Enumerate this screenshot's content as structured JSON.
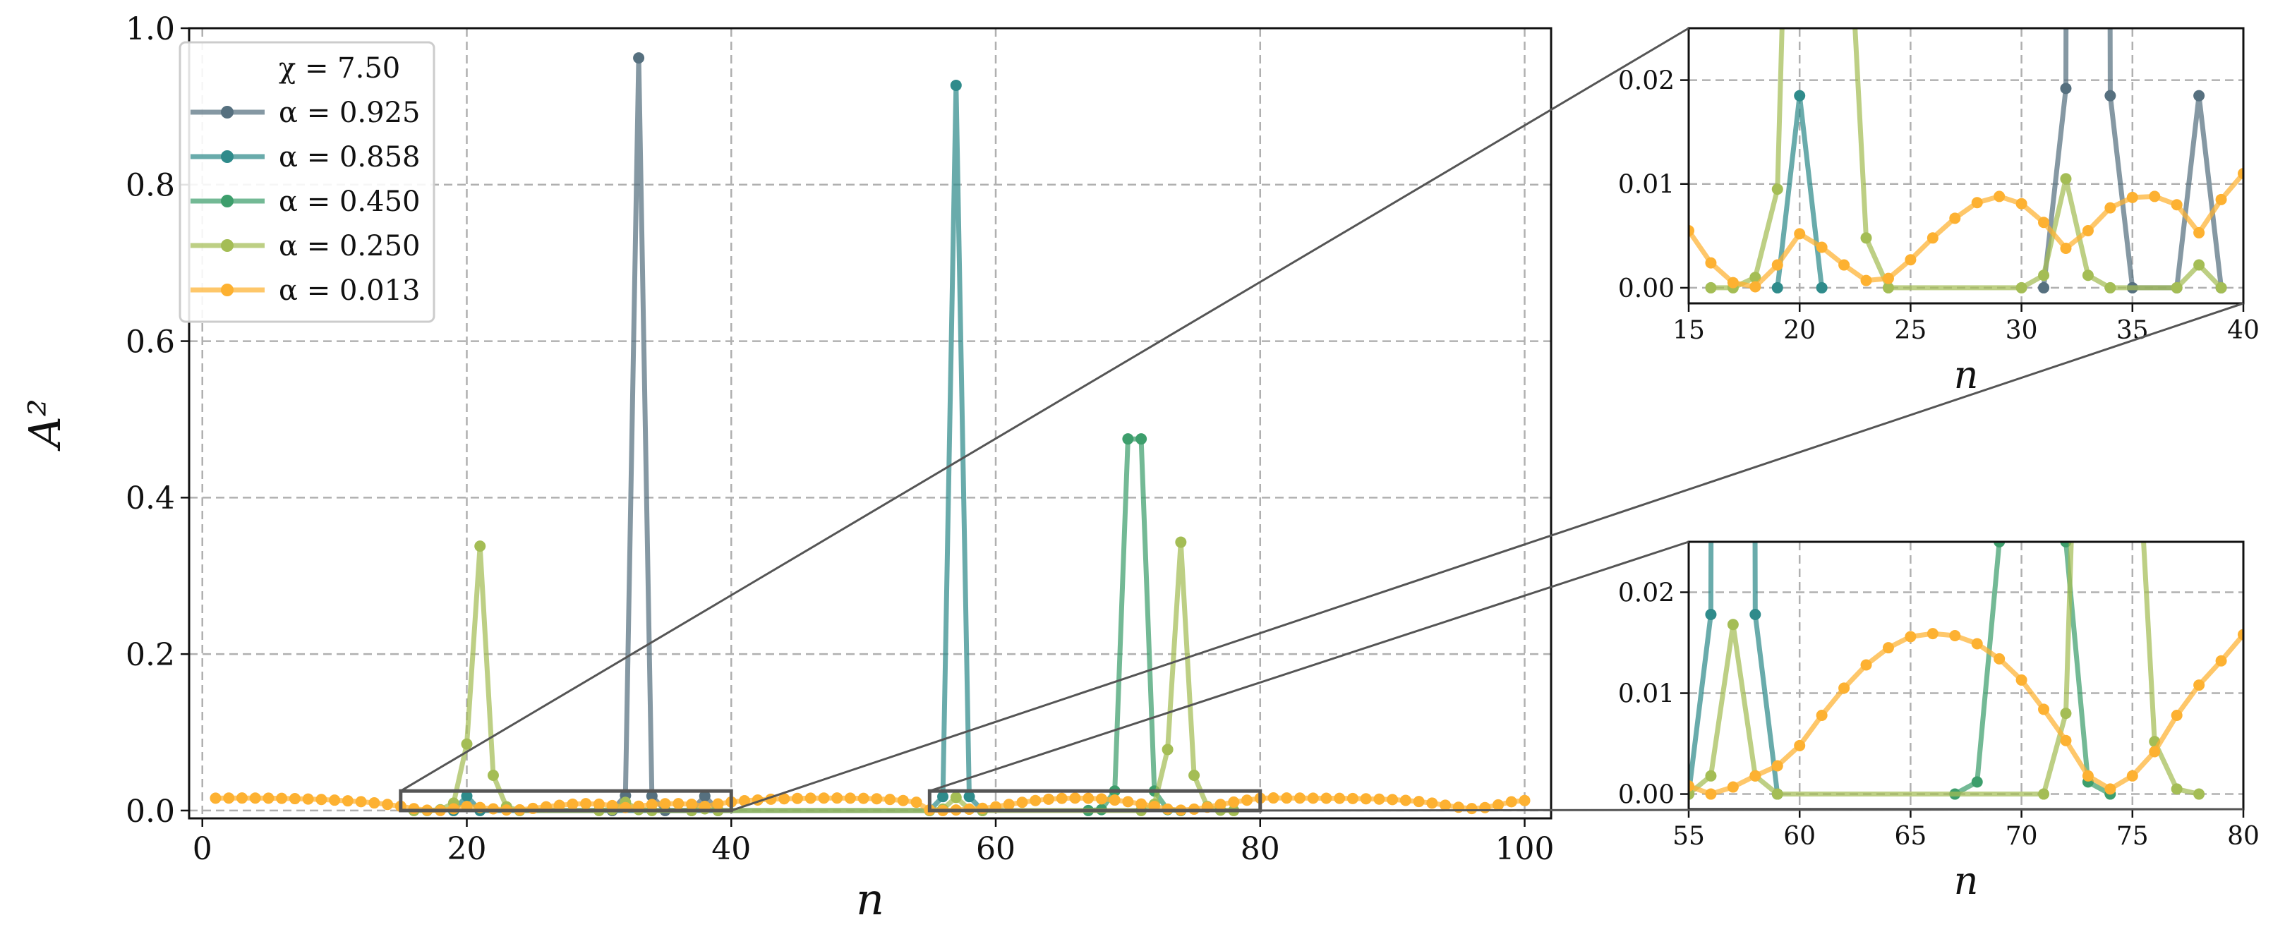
{
  "chart_data": [
    {
      "id": "main",
      "type": "line",
      "xlabel": "n",
      "ylabel": "A²",
      "xlim": [
        -1,
        102
      ],
      "ylim": [
        -0.01,
        1.0
      ],
      "xticks": [
        0,
        20,
        40,
        60,
        80,
        100
      ],
      "yticks": [
        0.0,
        0.2,
        0.4,
        0.6,
        0.8,
        1.0
      ],
      "xtick_labels": [
        "0",
        "20",
        "40",
        "60",
        "80",
        "100"
      ],
      "ytick_labels": [
        "0.0",
        "0.2",
        "0.4",
        "0.6",
        "0.8",
        "1.0"
      ],
      "grid": true,
      "legend_position": "upper-left",
      "legend_header": "χ = 7.50",
      "zoom_boxes": [
        {
          "x": [
            15,
            40
          ],
          "y": [
            0.0,
            0.025
          ],
          "target": "inset-top"
        },
        {
          "x": [
            55,
            80
          ],
          "y": [
            0.0,
            0.025
          ],
          "target": "inset-bottom"
        }
      ]
    },
    {
      "id": "inset-top",
      "type": "line",
      "xlabel": "n",
      "ylabel": "",
      "xlim": [
        15,
        40
      ],
      "ylim": [
        -0.0015,
        0.025
      ],
      "xticks": [
        15,
        20,
        25,
        30,
        35,
        40
      ],
      "yticks": [
        0.0,
        0.01,
        0.02
      ],
      "xtick_labels": [
        "15",
        "20",
        "25",
        "30",
        "35",
        "40"
      ],
      "ytick_labels": [
        "0.00",
        "0.01",
        "0.02"
      ],
      "grid": true
    },
    {
      "id": "inset-bottom",
      "type": "line",
      "xlabel": "n",
      "ylabel": "",
      "xlim": [
        55,
        80
      ],
      "ylim": [
        -0.0015,
        0.025
      ],
      "xticks": [
        55,
        60,
        65,
        70,
        75,
        80
      ],
      "yticks": [
        0.0,
        0.01,
        0.02
      ],
      "xtick_labels": [
        "55",
        "60",
        "65",
        "70",
        "75",
        "80"
      ],
      "ytick_labels": [
        "0.00",
        "0.01",
        "0.02"
      ],
      "grid": true
    }
  ],
  "series": [
    {
      "name": "α = 0.925",
      "color": "#56707f",
      "points": [
        [
          31,
          0.0
        ],
        [
          32,
          0.0192
        ],
        [
          33,
          0.962
        ],
        [
          34,
          0.0185
        ],
        [
          35,
          0.0
        ],
        [
          37,
          0.0
        ],
        [
          38,
          0.0185
        ],
        [
          39,
          0.0
        ]
      ]
    },
    {
      "name": "α = 0.858",
      "color": "#2f8b8b",
      "points": [
        [
          19,
          0.0
        ],
        [
          20,
          0.0185
        ],
        [
          21,
          0.0
        ],
        [
          55,
          0.0
        ],
        [
          56,
          0.0178
        ],
        [
          57,
          0.927
        ],
        [
          58,
          0.0178
        ],
        [
          59,
          0.0
        ]
      ]
    },
    {
      "name": "α = 0.450",
      "color": "#3d9e6c",
      "points": [
        [
          67,
          0.0
        ],
        [
          68,
          0.0012
        ],
        [
          69,
          0.025
        ],
        [
          70,
          0.475
        ],
        [
          71,
          0.475
        ],
        [
          72,
          0.025
        ],
        [
          73,
          0.0012
        ],
        [
          74,
          0.0
        ]
      ]
    },
    {
      "name": "α = 0.250",
      "color": "#a4bd55",
      "points": [
        [
          16,
          0.0
        ],
        [
          17,
          0.0
        ],
        [
          18,
          0.001
        ],
        [
          19,
          0.0095
        ],
        [
          20,
          0.085
        ],
        [
          21,
          0.338
        ],
        [
          22,
          0.045
        ],
        [
          23,
          0.0048
        ],
        [
          24,
          0.0
        ],
        [
          30,
          0.0
        ],
        [
          31,
          0.0012
        ],
        [
          32,
          0.0105
        ],
        [
          33,
          0.0012
        ],
        [
          34,
          0.0
        ],
        [
          37,
          0.0
        ],
        [
          38,
          0.0022
        ],
        [
          39,
          0.0
        ],
        [
          55,
          0.0
        ],
        [
          56,
          0.0018
        ],
        [
          57,
          0.0168
        ],
        [
          58,
          0.0018
        ],
        [
          59,
          0.0
        ],
        [
          71,
          0.0
        ],
        [
          72,
          0.008
        ],
        [
          73,
          0.078
        ],
        [
          74,
          0.343
        ],
        [
          75,
          0.045
        ],
        [
          76,
          0.0052
        ],
        [
          77,
          0.0005
        ],
        [
          78,
          0.0
        ]
      ]
    },
    {
      "name": "α = 0.013",
      "color": "#fdb131",
      "points": [
        [
          1,
          0.0158
        ],
        [
          2,
          0.0159
        ],
        [
          3,
          0.016
        ],
        [
          4,
          0.0159
        ],
        [
          5,
          0.0158
        ],
        [
          6,
          0.0156
        ],
        [
          7,
          0.0152
        ],
        [
          8,
          0.0147
        ],
        [
          9,
          0.0141
        ],
        [
          10,
          0.0133
        ],
        [
          11,
          0.0124
        ],
        [
          12,
          0.0113
        ],
        [
          13,
          0.0098
        ],
        [
          14,
          0.0078
        ],
        [
          15,
          0.0055
        ],
        [
          16,
          0.0024
        ],
        [
          17,
          0.0005
        ],
        [
          18,
          0.0001
        ],
        [
          19,
          0.0022
        ],
        [
          20,
          0.0052
        ],
        [
          21,
          0.0039
        ],
        [
          22,
          0.0022
        ],
        [
          23,
          0.0007
        ],
        [
          24,
          0.0009
        ],
        [
          25,
          0.0027
        ],
        [
          26,
          0.0048
        ],
        [
          27,
          0.0067
        ],
        [
          28,
          0.0082
        ],
        [
          29,
          0.0088
        ],
        [
          30,
          0.0081
        ],
        [
          31,
          0.0063
        ],
        [
          32,
          0.0038
        ],
        [
          33,
          0.0055
        ],
        [
          34,
          0.0077
        ],
        [
          35,
          0.0087
        ],
        [
          36,
          0.0088
        ],
        [
          37,
          0.008
        ],
        [
          38,
          0.0053
        ],
        [
          39,
          0.0085
        ],
        [
          40,
          0.011
        ],
        [
          41,
          0.0125
        ],
        [
          42,
          0.0135
        ],
        [
          43,
          0.0145
        ],
        [
          44,
          0.015
        ],
        [
          45,
          0.0155
        ],
        [
          46,
          0.0158
        ],
        [
          47,
          0.0159
        ],
        [
          48,
          0.016
        ],
        [
          49,
          0.0158
        ],
        [
          50,
          0.0156
        ],
        [
          51,
          0.015
        ],
        [
          52,
          0.0142
        ],
        [
          53,
          0.0128
        ],
        [
          54,
          0.0106
        ],
        [
          55,
          0.0008
        ],
        [
          56,
          0.0
        ],
        [
          57,
          0.0007
        ],
        [
          58,
          0.0018
        ],
        [
          59,
          0.0028
        ],
        [
          60,
          0.0048
        ],
        [
          61,
          0.0078
        ],
        [
          62,
          0.0105
        ],
        [
          63,
          0.0128
        ],
        [
          64,
          0.0145
        ],
        [
          65,
          0.0156
        ],
        [
          66,
          0.0159
        ],
        [
          67,
          0.0157
        ],
        [
          68,
          0.0149
        ],
        [
          69,
          0.0134
        ],
        [
          70,
          0.0113
        ],
        [
          71,
          0.0084
        ],
        [
          72,
          0.0053
        ],
        [
          73,
          0.0018
        ],
        [
          74,
          0.0005
        ],
        [
          75,
          0.0018
        ],
        [
          76,
          0.0042
        ],
        [
          77,
          0.0078
        ],
        [
          78,
          0.0108
        ],
        [
          79,
          0.0132
        ],
        [
          80,
          0.0158
        ],
        [
          81,
          0.0161
        ],
        [
          82,
          0.016
        ],
        [
          83,
          0.0159
        ],
        [
          84,
          0.0158
        ],
        [
          85,
          0.0157
        ],
        [
          86,
          0.0156
        ],
        [
          87,
          0.0154
        ],
        [
          88,
          0.015
        ],
        [
          89,
          0.0146
        ],
        [
          90,
          0.014
        ],
        [
          91,
          0.013
        ],
        [
          92,
          0.0115
        ],
        [
          93,
          0.0095
        ],
        [
          94,
          0.0068
        ],
        [
          95,
          0.0042
        ],
        [
          96,
          0.0025
        ],
        [
          97,
          0.0038
        ],
        [
          98,
          0.0072
        ],
        [
          99,
          0.0112
        ],
        [
          100,
          0.0128
        ]
      ]
    }
  ]
}
